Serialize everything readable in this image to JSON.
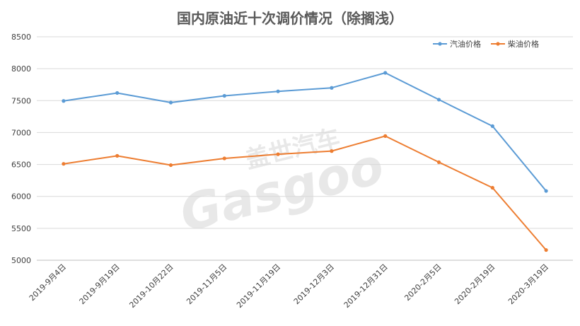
{
  "chart_data": {
    "type": "line",
    "title": "国内原油近十次调价情况（除搁浅）",
    "xlabel": "",
    "ylabel": "",
    "categories": [
      "2019-9月4日",
      "2019-9月19日",
      "2019-10月22日",
      "2019-11月5日",
      "2019-11月19日",
      "2019-12月3日",
      "2019-12月31日",
      "2020-2月5日",
      "2020-2月19日",
      "2020-3月19日"
    ],
    "ylim": [
      5000,
      8500
    ],
    "yticks": [
      5000,
      5500,
      6000,
      6500,
      7000,
      7500,
      8000,
      8500
    ],
    "grid": "horizontal",
    "legend_position": "top-right",
    "series": [
      {
        "name": "汽油价格",
        "color": "#5b9bd5",
        "values": [
          7495,
          7620,
          7470,
          7575,
          7645,
          7700,
          7935,
          7515,
          7100,
          6085
        ]
      },
      {
        "name": "柴油价格",
        "color": "#ed7d31",
        "values": [
          6510,
          6635,
          6490,
          6595,
          6660,
          6710,
          6945,
          6535,
          6135,
          5160
        ]
      }
    ]
  },
  "watermark": {
    "text": "盖世汽车",
    "logo": "Gasgoo"
  }
}
